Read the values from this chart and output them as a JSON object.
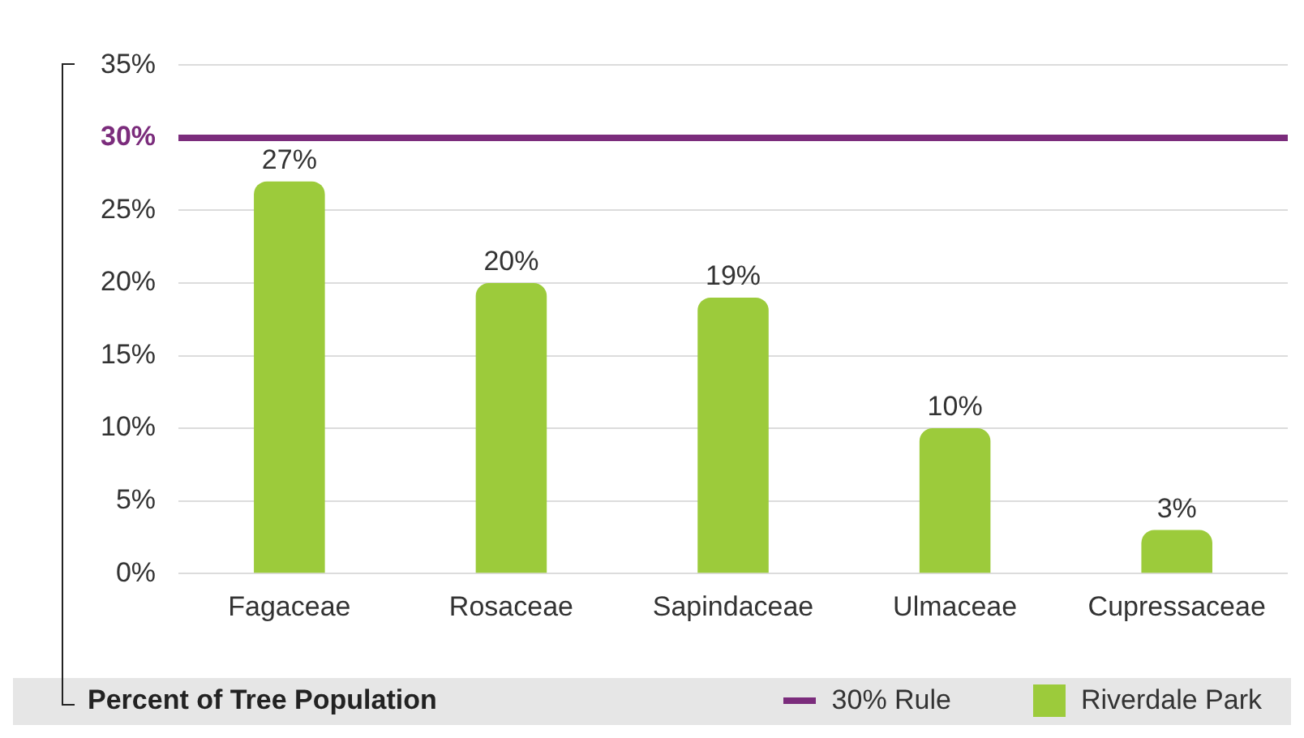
{
  "chart_data": {
    "type": "bar",
    "ylabel": "Percent of Tree Population",
    "categories": [
      "Fagaceae",
      "Rosaceae",
      "Sapindaceae",
      "Ulmaceae",
      "Cupressaceae"
    ],
    "series": [
      {
        "name": "Riverdale Park",
        "color": "#9ccb3b",
        "values": [
          27,
          20,
          19,
          10,
          3
        ],
        "value_labels": [
          "27%",
          "20%",
          "19%",
          "10%",
          "3%"
        ]
      }
    ],
    "ylim": [
      0,
      35
    ],
    "yticks": [
      {
        "value": 0,
        "label": "0%"
      },
      {
        "value": 5,
        "label": "5%"
      },
      {
        "value": 10,
        "label": "10%"
      },
      {
        "value": 15,
        "label": "15%"
      },
      {
        "value": 20,
        "label": "20%"
      },
      {
        "value": 25,
        "label": "25%"
      },
      {
        "value": 30,
        "label": "30%"
      },
      {
        "value": 35,
        "label": "35%"
      }
    ],
    "ref_lines": [
      {
        "axis": "y",
        "value": 30,
        "label": "30% Rule",
        "color": "#7b2c7c"
      }
    ],
    "grid": "y",
    "legend": "bottom right"
  }
}
